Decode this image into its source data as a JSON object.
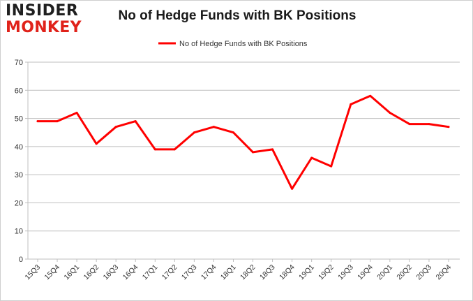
{
  "logo": {
    "line1": "INSIDER",
    "line2": "MONKEY"
  },
  "chart_data": {
    "type": "line",
    "title": "No of Hedge Funds with BK Positions",
    "categories": [
      "15Q3",
      "15Q4",
      "16Q1",
      "16Q2",
      "16Q3",
      "16Q4",
      "17Q1",
      "17Q2",
      "17Q3",
      "17Q4",
      "18Q1",
      "18Q2",
      "18Q3",
      "18Q4",
      "19Q1",
      "19Q2",
      "19Q3",
      "19Q4",
      "20Q1",
      "20Q2",
      "20Q3",
      "20Q4"
    ],
    "series": [
      {
        "name": "No of Hedge Funds with BK Positions",
        "color": "#ff0000",
        "values": [
          49,
          49,
          52,
          41,
          47,
          49,
          39,
          39,
          45,
          47,
          45,
          38,
          39,
          25,
          36,
          33,
          55,
          58,
          52,
          48,
          48,
          47
        ]
      }
    ],
    "ylim": [
      0,
      70
    ],
    "yticks": [
      0,
      10,
      20,
      30,
      40,
      50,
      60,
      70
    ],
    "grid": true,
    "legend": "top-center"
  }
}
